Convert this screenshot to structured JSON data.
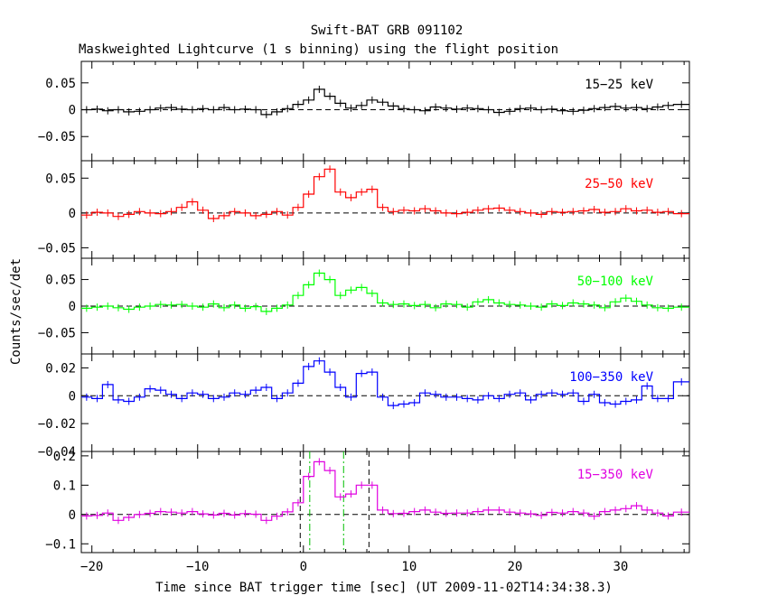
{
  "title": "Swift-BAT GRB 091102",
  "subtitle": "Maskweighted Lightcurve (1 s binning) using the flight position",
  "xlabel": "Time since BAT trigger time [sec] (UT 2009-11-02T14:34:38.3)",
  "ylabel": "Counts/sec/det",
  "chart_data": {
    "type": "line",
    "x_range": [
      -21,
      36.5
    ],
    "x_ticks": [
      -20,
      -10,
      0,
      10,
      20,
      30
    ],
    "x_tick_labels": [
      "−20",
      "−10",
      "0",
      "10",
      "20",
      "30"
    ],
    "bin_edges": [
      -21,
      -20,
      -19,
      -18,
      -17,
      -16,
      -15,
      -14,
      -13,
      -12,
      -11,
      -10,
      -9,
      -8,
      -7,
      -6,
      -5,
      -4,
      -3,
      -2,
      -1,
      0,
      1,
      2,
      3,
      4,
      5,
      6,
      7,
      8,
      9,
      10,
      11,
      12,
      13,
      14,
      15,
      16,
      17,
      18,
      19,
      20,
      21,
      22,
      23,
      24,
      25,
      26,
      27,
      28,
      29,
      30,
      31,
      32,
      33,
      34,
      35,
      36.5
    ],
    "vertical_lines": [
      {
        "x": -0.3,
        "style": "dashed",
        "color": "#000000"
      },
      {
        "x": 0.6,
        "style": "dashdot",
        "color": "#00c000"
      },
      {
        "x": 3.8,
        "style": "dashdot",
        "color": "#00c000"
      },
      {
        "x": 6.2,
        "style": "dashed",
        "color": "#000000"
      }
    ],
    "panels": [
      {
        "name": "15-25 keV",
        "label": "15−25 keV",
        "color": "#000000",
        "ylim": [
          -0.095,
          0.09
        ],
        "y_ticks": [
          0.05,
          0,
          -0.05
        ],
        "y_tick_labels": [
          "0.05",
          "0",
          "−0.05"
        ],
        "values": [
          0,
          0.001,
          -0.002,
          0,
          -0.004,
          -0.003,
          0,
          0.003,
          0.004,
          0.001,
          0,
          0.002,
          0,
          0.004,
          0,
          0.001,
          0,
          -0.009,
          -0.004,
          0.002,
          0.01,
          0.018,
          0.038,
          0.025,
          0.012,
          0.003,
          0.008,
          0.018,
          0.014,
          0.007,
          0.002,
          0,
          -0.002,
          0.005,
          0.003,
          0.001,
          0.003,
          0.002,
          0,
          -0.005,
          -0.003,
          0.002,
          0.003,
          0,
          0.001,
          -0.002,
          -0.003,
          -0.001,
          0.002,
          0.004,
          0.006,
          0.003,
          0.004,
          0.002,
          0.005,
          0.008,
          0.01
        ]
      },
      {
        "name": "25-50 keV",
        "label": "25−50 keV",
        "color": "#ff0000",
        "ylim": [
          -0.065,
          0.075
        ],
        "y_ticks": [
          0.05,
          0,
          -0.05
        ],
        "y_tick_labels": [
          "0.05",
          "0",
          "−0.05"
        ],
        "values": [
          -0.003,
          0.001,
          0,
          -0.005,
          -0.002,
          0.002,
          0,
          -0.001,
          0.002,
          0.008,
          0.016,
          0.004,
          -0.008,
          -0.004,
          0.002,
          0,
          -0.004,
          -0.002,
          0.002,
          -0.003,
          0.008,
          0.027,
          0.052,
          0.063,
          0.03,
          0.022,
          0.03,
          0.034,
          0.008,
          0.002,
          0.004,
          0.003,
          0.006,
          0.003,
          0,
          -0.001,
          0.001,
          0.004,
          0.006,
          0.007,
          0.004,
          0.002,
          0,
          -0.002,
          0.002,
          0.001,
          0.002,
          0.003,
          0.005,
          0.001,
          0.002,
          0.006,
          0.003,
          0.004,
          0.001,
          0.002,
          -0.001
        ]
      },
      {
        "name": "50-100 keV",
        "label": "50−100 keV",
        "color": "#00ff00",
        "ylim": [
          -0.09,
          0.09
        ],
        "y_ticks": [
          0.05,
          0,
          -0.05
        ],
        "y_tick_labels": [
          "0.05",
          "0",
          "−0.05"
        ],
        "values": [
          -0.004,
          -0.002,
          0,
          -0.003,
          -0.006,
          -0.002,
          0,
          0.003,
          0.002,
          0.003,
          0,
          -0.002,
          0.004,
          -0.003,
          0.002,
          -0.004,
          -0.001,
          -0.01,
          -0.004,
          0.002,
          0.02,
          0.04,
          0.062,
          0.05,
          0.02,
          0.03,
          0.035,
          0.024,
          0.006,
          0.003,
          0.004,
          0.001,
          0.003,
          -0.003,
          0.004,
          0.003,
          -0.002,
          0.008,
          0.012,
          0.006,
          0.003,
          0.002,
          0,
          -0.002,
          0.004,
          0.001,
          0.006,
          0.004,
          0.002,
          -0.003,
          0.008,
          0.015,
          0.009,
          0.002,
          -0.003,
          -0.004,
          -0.002
        ]
      },
      {
        "name": "100-350 keV",
        "label": "100−350 keV",
        "color": "#0000ff",
        "ylim": [
          -0.04,
          0.03
        ],
        "y_ticks": [
          0.02,
          0,
          -0.02,
          -0.04
        ],
        "y_tick_labels": [
          "0.02",
          "0",
          "−0.02",
          "−0.04"
        ],
        "values": [
          -0.001,
          -0.002,
          0.008,
          -0.003,
          -0.004,
          -0.001,
          0.005,
          0.004,
          0.001,
          -0.002,
          0.002,
          0.001,
          -0.002,
          -0.001,
          0.002,
          0.001,
          0.004,
          0.006,
          -0.002,
          0.002,
          0.009,
          0.021,
          0.025,
          0.017,
          0.006,
          -0.001,
          0.016,
          0.017,
          -0.001,
          -0.007,
          -0.006,
          -0.005,
          0.002,
          0.001,
          -0.001,
          -0.001,
          -0.002,
          -0.003,
          0,
          -0.002,
          0.001,
          0.002,
          -0.003,
          0.001,
          0.002,
          0.001,
          0.002,
          -0.004,
          0.001,
          -0.005,
          -0.006,
          -0.004,
          -0.003,
          0.007,
          -0.002,
          -0.002,
          0.01
        ]
      },
      {
        "name": "15-350 keV",
        "label": "15−350 keV",
        "color": "#e000e0",
        "ylim": [
          -0.13,
          0.215
        ],
        "y_ticks": [
          0.2,
          0.1,
          0,
          -0.1
        ],
        "y_tick_labels": [
          "0.2",
          "0.1",
          "0",
          "−0.1"
        ],
        "values": [
          -0.005,
          -0.003,
          0.005,
          -0.02,
          -0.01,
          0,
          0.004,
          0.01,
          0.008,
          0.005,
          0.01,
          0.002,
          -0.002,
          0.004,
          -0.002,
          0.003,
          0.001,
          -0.02,
          -0.006,
          0.009,
          0.04,
          0.13,
          0.18,
          0.15,
          0.06,
          0.07,
          0.1,
          0.1,
          0.015,
          0.003,
          0.004,
          0.01,
          0.015,
          0.008,
          0.004,
          0.005,
          0.005,
          0.01,
          0.015,
          0.015,
          0.008,
          0.005,
          0.002,
          -0.003,
          0.007,
          0.005,
          0.01,
          0.005,
          -0.006,
          0.01,
          0.015,
          0.02,
          0.03,
          0.015,
          0.005,
          -0.005,
          0.008
        ]
      }
    ]
  }
}
